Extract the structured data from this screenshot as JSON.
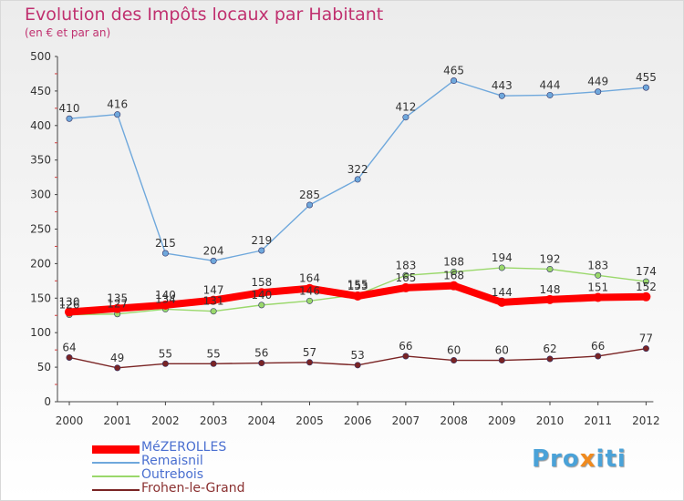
{
  "chart_data": {
    "type": "line",
    "title": "Evolution des Impôts locaux par Habitant",
    "subtitle": "(en € et par an)",
    "x": [
      "2000",
      "2001",
      "2002",
      "2003",
      "2004",
      "2005",
      "2006",
      "2007",
      "2008",
      "2009",
      "2010",
      "2011",
      "2012"
    ],
    "ylim": [
      0,
      500
    ],
    "yticks": [
      0,
      50,
      100,
      150,
      200,
      250,
      300,
      350,
      400,
      450,
      500
    ],
    "grid": false,
    "legend_position": "bottom-left",
    "series": [
      {
        "name": "MéZEROLLES",
        "color": "#ff0000",
        "values": [
          130,
          135,
          140,
          147,
          158,
          164,
          153,
          165,
          168,
          144,
          148,
          151,
          152
        ]
      },
      {
        "name": "Remaisnil",
        "color": "#6fa8dc",
        "values": [
          410,
          416,
          215,
          204,
          219,
          285,
          322,
          412,
          465,
          443,
          444,
          449,
          455
        ]
      },
      {
        "name": "Outrebois",
        "color": "#9ad86b",
        "values": [
          126,
          127,
          134,
          131,
          140,
          146,
          155,
          183,
          188,
          194,
          192,
          183,
          174
        ]
      },
      {
        "name": "Frohen-le-Grand",
        "color": "#7a2424",
        "values": [
          64,
          49,
          55,
          55,
          56,
          57,
          53,
          66,
          60,
          60,
          62,
          66,
          77
        ]
      }
    ]
  },
  "logo": {
    "part1": "Pro",
    "part2": "x",
    "part3": "iti"
  }
}
